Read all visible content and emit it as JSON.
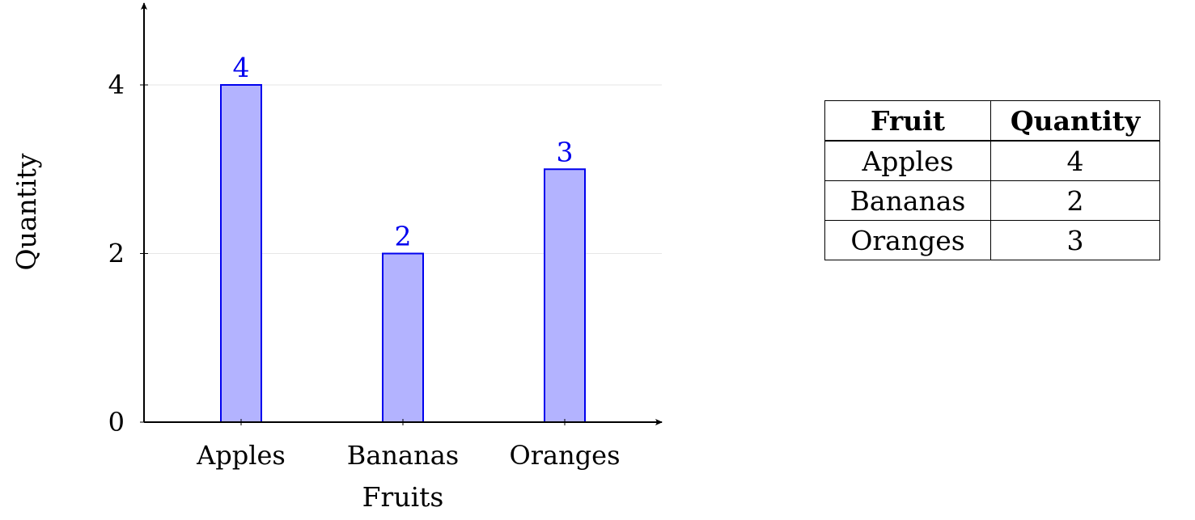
{
  "chart_data": {
    "type": "bar",
    "categories": [
      "Apples",
      "Bananas",
      "Oranges"
    ],
    "values": [
      4,
      2,
      3
    ],
    "title": "",
    "xlabel": "Fruits",
    "ylabel": "Quantity",
    "ylim": [
      0,
      5
    ],
    "yticks": [
      0,
      2,
      4
    ],
    "grid": "horizontal",
    "data_labels": true,
    "colors": {
      "bar_fill": "#b3b3ff",
      "bar_stroke": "#0000ee",
      "label": "#0000ee",
      "grid": "#e6e6e6"
    }
  },
  "table": {
    "headers": [
      "Fruit",
      "Quantity"
    ],
    "rows": [
      [
        "Apples",
        "4"
      ],
      [
        "Bananas",
        "2"
      ],
      [
        "Oranges",
        "3"
      ]
    ]
  }
}
